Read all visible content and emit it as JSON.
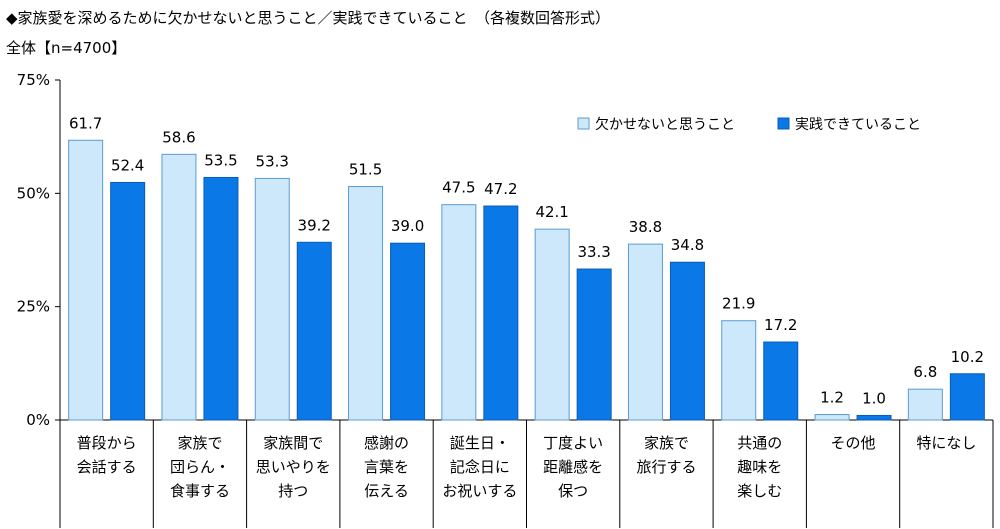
{
  "title": "◆家族愛を深めるために欠かせないと思うこと／実践できていること　（各複数回答形式）",
  "subtitle": "全体【n=4700】",
  "chart_data": {
    "type": "bar",
    "ylim": [
      0,
      75
    ],
    "yticks": [
      "0%",
      "25%",
      "50%",
      "75%"
    ],
    "ytick_values": [
      0,
      25,
      50,
      75
    ],
    "legend_position": "top-right",
    "categories": [
      [
        "普段から",
        "会話する"
      ],
      [
        "家族で",
        "団らん・",
        "食事する"
      ],
      [
        "家族間で",
        "思いやりを",
        "持つ"
      ],
      [
        "感謝の",
        "言葉を",
        "伝える"
      ],
      [
        "誕生日・",
        "記念日に",
        "お祝いする"
      ],
      [
        "丁度よい",
        "距離感を",
        "保つ"
      ],
      [
        "家族で",
        "旅行する"
      ],
      [
        "共通の",
        "趣味を",
        "楽しむ"
      ],
      [
        "その他"
      ],
      [
        "特になし"
      ]
    ],
    "series": [
      {
        "name": "欠かせないと思うこと",
        "color": "#cce8fa",
        "stroke": "#5b9bd5",
        "values": [
          61.7,
          58.6,
          53.3,
          51.5,
          47.5,
          42.1,
          38.8,
          21.9,
          1.2,
          6.8
        ]
      },
      {
        "name": "実践できていること",
        "color": "#0a78e6",
        "stroke": "#0b5cb8",
        "values": [
          52.4,
          53.5,
          39.2,
          39.0,
          47.2,
          33.3,
          34.8,
          17.2,
          1.0,
          10.2
        ]
      }
    ]
  }
}
